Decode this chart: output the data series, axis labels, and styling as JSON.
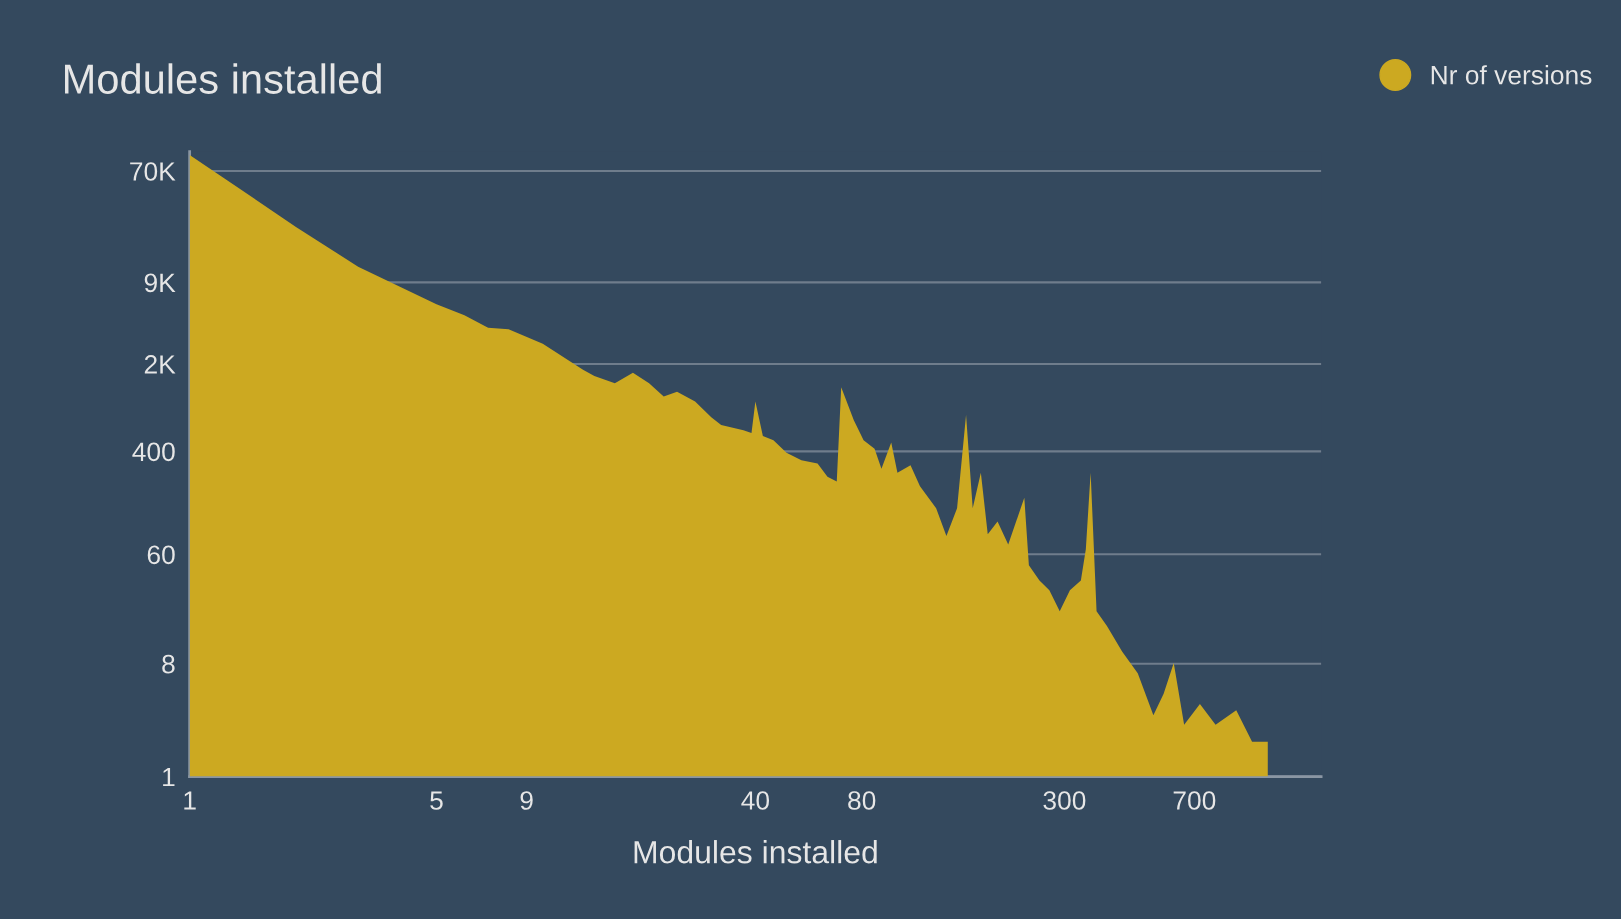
{
  "chart_data": {
    "type": "area",
    "title": "Modules installed",
    "xlabel": "Modules installed",
    "log": "xy",
    "grid": "y",
    "legend": "top right",
    "xlim": [
      1,
      1600
    ],
    "xticks": [
      1,
      5,
      9,
      40,
      80,
      300,
      700
    ],
    "ylim": [
      1,
      100000
    ],
    "yticks": [
      1,
      8,
      60,
      400,
      {
        "value": 2000,
        "label": "2K"
      },
      {
        "value": 9000,
        "label": "9K"
      },
      {
        "value": 70000,
        "label": "70K"
      }
    ],
    "x": [
      1,
      2,
      3,
      5,
      6,
      7,
      8,
      10,
      13,
      14,
      16,
      18,
      20,
      22,
      24,
      27,
      30,
      32,
      37,
      39,
      40,
      42,
      45,
      49,
      54,
      60,
      64,
      68,
      70,
      76,
      81,
      87,
      91,
      97,
      101,
      110,
      117,
      130,
      139,
      149,
      158,
      165,
      174,
      182,
      194,
      208,
      231,
      238,
      255,
      272,
      291,
      311,
      334,
      345,
      356,
      370,
      396,
      437,
      484,
      536,
      573,
      612,
      655,
      726,
      804,
      920,
      1020,
      1130
    ],
    "series": [
      {
        "name": "Nr of versions",
        "color": "#cca921",
        "values": [
          94000,
          25000,
          12000,
          6000,
          4900,
          3900,
          3800,
          2900,
          1800,
          1600,
          1400,
          1700,
          1400,
          1100,
          1200,
          1000,
          750,
          650,
          590,
          560,
          1000,
          530,
          490,
          390,
          340,
          320,
          250,
          230,
          1300,
          710,
          490,
          420,
          290,
          470,
          270,
          310,
          210,
          140,
          84,
          140,
          780,
          140,
          270,
          87,
          110,
          72,
          170,
          49,
          37,
          31,
          21,
          31,
          37,
          66,
          270,
          21,
          16,
          10,
          6.7,
          3.1,
          4.6,
          8.1,
          2.6,
          3.8,
          2.6,
          3.4,
          1.9,
          1.9
        ]
      }
    ]
  }
}
